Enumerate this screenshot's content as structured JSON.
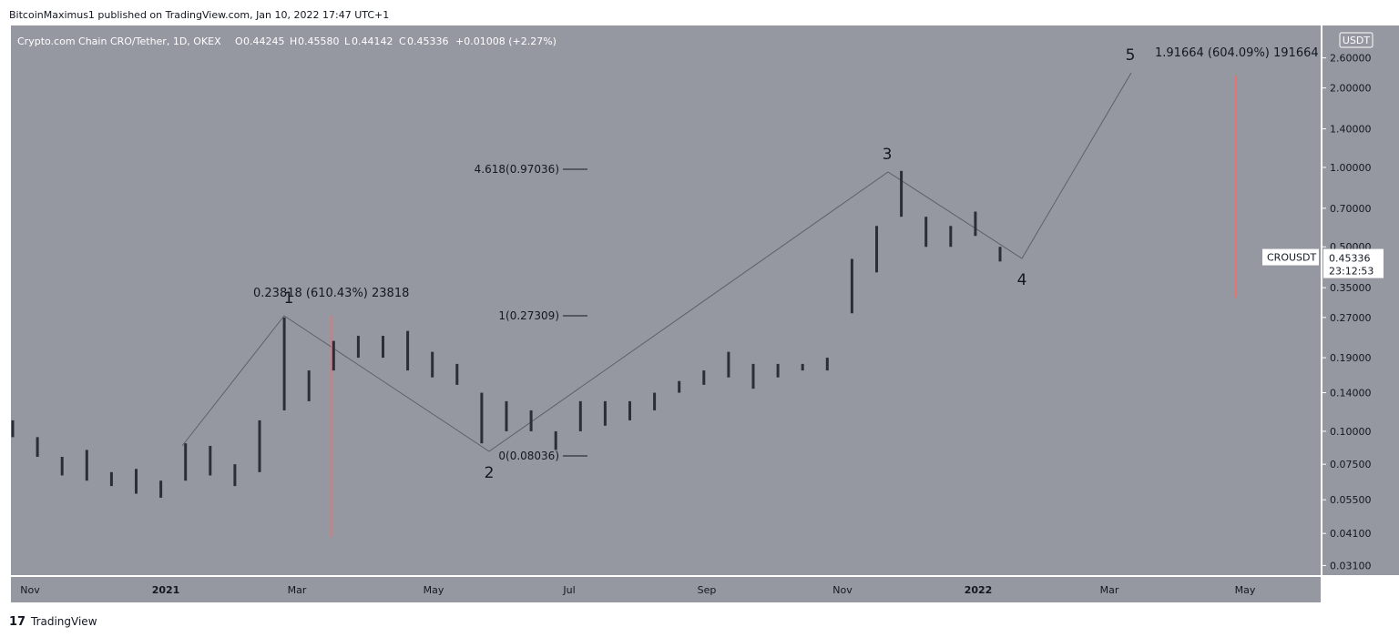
{
  "header": {
    "text": "BitcoinMaximus1 published on TradingView.com, Jan 10, 2022 17:47 UTC+1"
  },
  "legend": {
    "symbol": "Crypto.com Chain CRO/Tether, 1D, OKEX",
    "open_key": "O",
    "open": "0.44245",
    "high_key": "H",
    "high": "0.45580",
    "low_key": "L",
    "low": "0.44142",
    "close_key": "C",
    "close": "0.45336",
    "change": "+0.01008 (+2.27%)"
  },
  "price_axis": {
    "currency": "USDT",
    "log": true,
    "ylim": [
      0.0285,
      3.45
    ],
    "ticks": [
      {
        "value": 2.6,
        "label": "2.60000"
      },
      {
        "value": 2.0,
        "label": "2.00000"
      },
      {
        "value": 1.4,
        "label": "1.40000"
      },
      {
        "value": 1.0,
        "label": "1.00000"
      },
      {
        "value": 0.7,
        "label": "0.70000"
      },
      {
        "value": 0.5,
        "label": "0.50000"
      },
      {
        "value": 0.35,
        "label": "0.35000"
      },
      {
        "value": 0.27,
        "label": "0.27000"
      },
      {
        "value": 0.19,
        "label": "0.19000"
      },
      {
        "value": 0.14,
        "label": "0.14000"
      },
      {
        "value": 0.1,
        "label": "0.10000"
      },
      {
        "value": 0.075,
        "label": "0.07500"
      },
      {
        "value": 0.055,
        "label": "0.05500"
      },
      {
        "value": 0.041,
        "label": "0.04100"
      },
      {
        "value": 0.031,
        "label": "0.03100"
      }
    ],
    "badge": {
      "symbol": "CROUSDT",
      "price": {
        "value": 0.45336,
        "label": "0.45336"
      },
      "countdown": "23:12:53"
    }
  },
  "time_axis": {
    "labels": [
      "Nov",
      "2021",
      "Mar",
      "May",
      "Jul",
      "Sep",
      "Nov",
      "2022",
      "Mar",
      "May"
    ]
  },
  "bars": [
    [
      0.095,
      0.11
    ],
    [
      0.08,
      0.095
    ],
    [
      0.068,
      0.08
    ],
    [
      0.065,
      0.085
    ],
    [
      0.062,
      0.07
    ],
    [
      0.058,
      0.072
    ],
    [
      0.056,
      0.065
    ],
    [
      0.065,
      0.09
    ],
    [
      0.068,
      0.088
    ],
    [
      0.062,
      0.075
    ],
    [
      0.07,
      0.11
    ],
    [
      0.12,
      0.27
    ],
    [
      0.13,
      0.17
    ],
    [
      0.17,
      0.22
    ],
    [
      0.19,
      0.23
    ],
    [
      0.19,
      0.23
    ],
    [
      0.17,
      0.24
    ],
    [
      0.16,
      0.2
    ],
    [
      0.15,
      0.18
    ],
    [
      0.09,
      0.14
    ],
    [
      0.1,
      0.13
    ],
    [
      0.1,
      0.12
    ],
    [
      0.085,
      0.1
    ],
    [
      0.1,
      0.13
    ],
    [
      0.105,
      0.13
    ],
    [
      0.11,
      0.13
    ],
    [
      0.12,
      0.14
    ],
    [
      0.14,
      0.155
    ],
    [
      0.15,
      0.17
    ],
    [
      0.16,
      0.2
    ],
    [
      0.145,
      0.18
    ],
    [
      0.16,
      0.18
    ],
    [
      0.17,
      0.18
    ],
    [
      0.17,
      0.19
    ],
    [
      0.28,
      0.45
    ],
    [
      0.4,
      0.6
    ],
    [
      0.65,
      0.97
    ],
    [
      0.5,
      0.65
    ],
    [
      0.5,
      0.6
    ],
    [
      0.55,
      0.68
    ],
    [
      0.44,
      0.5
    ]
  ],
  "annotations": {
    "wave_1_target": "0.23818 (610.43%) 23818",
    "wave_5_target": "1.91664 (604.09%) 191664",
    "fib_4618": "4.618(0.97036)",
    "fib_1": "1(0.27309)",
    "fib_0": "0(0.08036)",
    "waves": [
      "1",
      "2",
      "3",
      "4",
      "5"
    ]
  },
  "footer": {
    "brand": "TradingView"
  }
}
